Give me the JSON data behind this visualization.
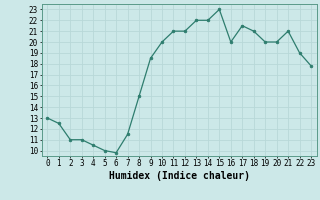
{
  "x": [
    0,
    1,
    2,
    3,
    4,
    5,
    6,
    7,
    8,
    9,
    10,
    11,
    12,
    13,
    14,
    15,
    16,
    17,
    18,
    19,
    20,
    21,
    22,
    23
  ],
  "y": [
    13,
    12.5,
    11,
    11,
    10.5,
    10,
    9.8,
    11.5,
    15,
    18.5,
    20,
    21,
    21,
    22,
    22,
    23,
    20,
    21.5,
    21,
    20,
    20,
    21,
    19,
    17.8
  ],
  "line_color": "#2e7d6e",
  "marker_color": "#2e7d6e",
  "bg_color": "#cce8e8",
  "grid_color": "#b8d8d8",
  "xlabel": "Humidex (Indice chaleur)",
  "xlim": [
    -0.5,
    23.5
  ],
  "ylim": [
    9.5,
    23.5
  ],
  "yticks": [
    10,
    11,
    12,
    13,
    14,
    15,
    16,
    17,
    18,
    19,
    20,
    21,
    22,
    23
  ],
  "xticks": [
    0,
    1,
    2,
    3,
    4,
    5,
    6,
    7,
    8,
    9,
    10,
    11,
    12,
    13,
    14,
    15,
    16,
    17,
    18,
    19,
    20,
    21,
    22,
    23
  ],
  "tick_fontsize": 5.5,
  "xlabel_fontsize": 7.0
}
